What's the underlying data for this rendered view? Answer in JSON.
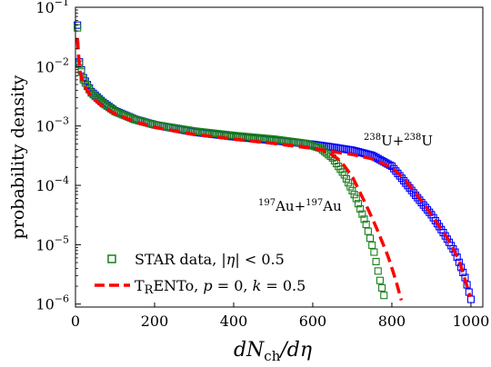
{
  "chart_data": {
    "type": "scatter",
    "xlabel": "dN_ch/dη",
    "ylabel": "probability density",
    "xlim": [
      0,
      1030
    ],
    "ylim_log10": [
      -6.05,
      -1
    ],
    "yscale": "log",
    "grid": false,
    "legend_position": "lower-left",
    "x_ticks": [
      0,
      200,
      400,
      600,
      800,
      1000
    ],
    "y_ticks": [
      {
        "exp": -6,
        "label": "10^−6"
      },
      {
        "exp": -5,
        "label": "10^−5"
      },
      {
        "exp": -4,
        "label": "10^−4"
      },
      {
        "exp": -3,
        "label": "10^−3"
      },
      {
        "exp": -2,
        "label": "10^−2"
      },
      {
        "exp": -1,
        "label": "10^−1"
      }
    ],
    "legend": [
      {
        "label": "STAR data, |η| < 0.5",
        "marker": "open-square"
      },
      {
        "label": "TRENTo, p = 0, k = 0.5",
        "marker": "dashed-line"
      }
    ],
    "annotations": {
      "uu": "238U+238U",
      "auau": "197Au+197Au"
    },
    "colors": {
      "au_data": "#1a7f1a",
      "u_data": "#0000ff",
      "trento": "#ff0000"
    },
    "series": [
      {
        "system": "UU",
        "kind": "data",
        "knots": [
          [
            5,
            0.05
          ],
          [
            10,
            0.012
          ],
          [
            20,
            0.0065
          ],
          [
            40,
            0.0038
          ],
          [
            70,
            0.0025
          ],
          [
            100,
            0.0018
          ],
          [
            150,
            0.0013
          ],
          [
            200,
            0.00105
          ],
          [
            300,
            0.00079
          ],
          [
            400,
            0.00066
          ],
          [
            500,
            0.00057
          ],
          [
            600,
            0.00049
          ],
          [
            650,
            0.00044
          ],
          [
            700,
            0.00039
          ],
          [
            750,
            0.00032
          ],
          [
            800,
            0.00021
          ],
          [
            830,
            0.00012
          ],
          [
            860,
            6.8e-05
          ],
          [
            900,
            3.2e-05
          ],
          [
            930,
            1.6e-05
          ],
          [
            960,
            7.5e-06
          ],
          [
            985,
            2.8e-06
          ],
          [
            1000,
            1.2e-06
          ]
        ]
      },
      {
        "system": "AuAu",
        "kind": "data",
        "knots": [
          [
            5,
            0.045
          ],
          [
            10,
            0.011
          ],
          [
            20,
            0.006
          ],
          [
            40,
            0.0036
          ],
          [
            70,
            0.0024
          ],
          [
            100,
            0.00175
          ],
          [
            150,
            0.00128
          ],
          [
            200,
            0.00105
          ],
          [
            300,
            0.00082
          ],
          [
            400,
            0.00069
          ],
          [
            500,
            0.0006
          ],
          [
            580,
            0.00051
          ],
          [
            620,
            0.00042
          ],
          [
            650,
            0.00029
          ],
          [
            680,
            0.00015
          ],
          [
            710,
            6e-05
          ],
          [
            735,
            2.2e-05
          ],
          [
            755,
            7.5e-06
          ],
          [
            770,
            2.5e-06
          ],
          [
            780,
            1.4e-06
          ]
        ]
      },
      {
        "system": "UU",
        "kind": "trento",
        "knots": [
          [
            5,
            0.03
          ],
          [
            10,
            0.009
          ],
          [
            20,
            0.005
          ],
          [
            40,
            0.0031
          ],
          [
            70,
            0.0021
          ],
          [
            100,
            0.0016
          ],
          [
            150,
            0.00118
          ],
          [
            200,
            0.00095
          ],
          [
            300,
            0.00072
          ],
          [
            400,
            0.0006
          ],
          [
            500,
            0.00051
          ],
          [
            550,
            0.00046
          ],
          [
            600,
            0.00042
          ],
          [
            650,
            0.00037
          ],
          [
            700,
            0.00033
          ],
          [
            750,
            0.00028
          ],
          [
            800,
            0.0002
          ],
          [
            830,
            0.00013
          ],
          [
            860,
            7.5e-05
          ],
          [
            900,
            3.2e-05
          ],
          [
            940,
            1.3e-05
          ],
          [
            970,
            5.5e-06
          ],
          [
            1000,
            1.2e-06
          ]
        ]
      },
      {
        "system": "AuAu",
        "kind": "trento",
        "knots": [
          [
            5,
            0.03
          ],
          [
            10,
            0.009
          ],
          [
            20,
            0.005
          ],
          [
            40,
            0.0031
          ],
          [
            70,
            0.0021
          ],
          [
            100,
            0.0016
          ],
          [
            150,
            0.00118
          ],
          [
            200,
            0.00095
          ],
          [
            300,
            0.00072
          ],
          [
            400,
            0.0006
          ],
          [
            500,
            0.00051
          ],
          [
            600,
            0.00043
          ],
          [
            640,
            0.00036
          ],
          [
            670,
            0.00026
          ],
          [
            700,
            0.00014
          ],
          [
            730,
            5.5e-05
          ],
          [
            760,
            2e-05
          ],
          [
            790,
            6.5e-06
          ],
          [
            810,
            2.5e-06
          ],
          [
            825,
            1.1e-06
          ]
        ]
      }
    ]
  }
}
